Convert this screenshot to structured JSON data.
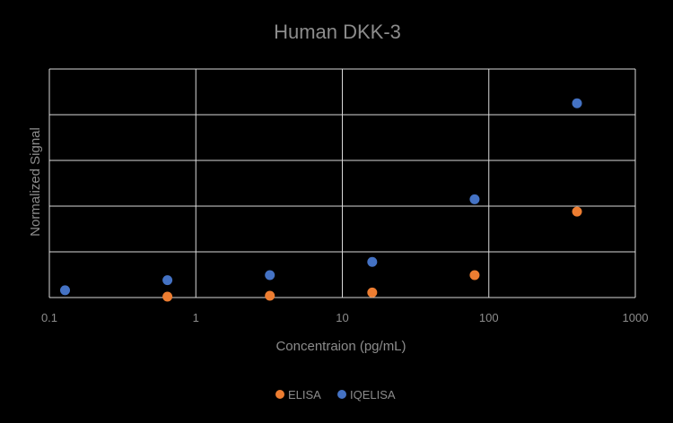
{
  "chart_data": {
    "type": "scatter",
    "title": "Human DKK-3",
    "xlabel": "Concentraion (pg/mL)",
    "ylabel": "Normalized Signal",
    "x_scale": "log",
    "xlim": [
      0.1,
      1000
    ],
    "ylim": [
      0,
      5
    ],
    "x_ticks": [
      0.1,
      1,
      10,
      100,
      1000
    ],
    "x_tick_labels": [
      "0.1",
      "1",
      "10",
      "100",
      "1000"
    ],
    "y_tick_labels_shown": false,
    "grid": true,
    "legend_position": "bottom",
    "series": [
      {
        "name": "ELISA",
        "color": "#ed7d31",
        "points": [
          {
            "x": 0.64,
            "y": 0.02
          },
          {
            "x": 3.2,
            "y": 0.04
          },
          {
            "x": 16,
            "y": 0.11
          },
          {
            "x": 80,
            "y": 0.49
          },
          {
            "x": 400,
            "y": 1.88
          }
        ]
      },
      {
        "name": "IQELISA",
        "color": "#4472c4",
        "points": [
          {
            "x": 0.128,
            "y": 0.16
          },
          {
            "x": 0.64,
            "y": 0.38
          },
          {
            "x": 3.2,
            "y": 0.49
          },
          {
            "x": 16,
            "y": 0.78
          },
          {
            "x": 80,
            "y": 2.15
          },
          {
            "x": 400,
            "y": 4.25
          }
        ]
      }
    ]
  }
}
